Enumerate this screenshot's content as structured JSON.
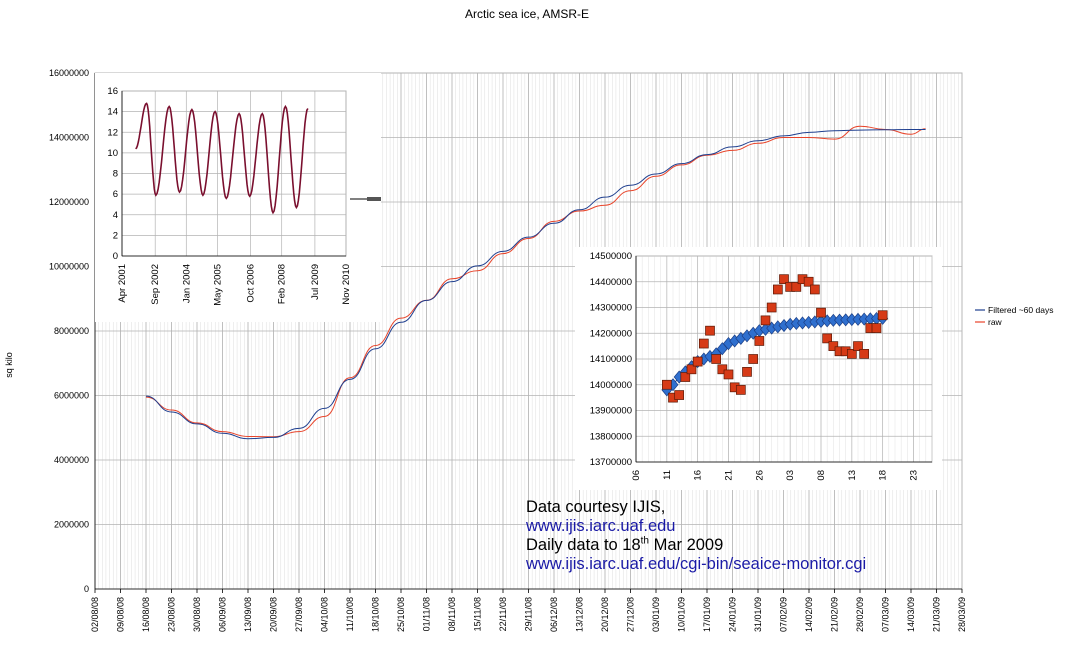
{
  "chart_data": [
    {
      "type": "line",
      "title": "Arctic sea ice, AMSR-E",
      "ylabel": "sq kilo",
      "ylim": [
        0,
        16000000
      ],
      "y_ticks": [
        "0",
        "2000000",
        "4000000",
        "6000000",
        "8000000",
        "10000000",
        "12000000",
        "14000000",
        "16000000"
      ],
      "x_ticks": [
        "02/08/08",
        "09/08/08",
        "16/08/08",
        "23/08/08",
        "30/08/08",
        "06/09/08",
        "13/09/08",
        "20/09/08",
        "27/09/08",
        "04/10/08",
        "11/10/08",
        "18/10/08",
        "25/10/08",
        "01/11/08",
        "08/11/08",
        "15/11/08",
        "22/11/08",
        "29/11/08",
        "06/12/08",
        "13/12/08",
        "20/12/08",
        "27/12/08",
        "03/01/09",
        "10/01/09",
        "17/01/09",
        "24/01/09",
        "31/01/09",
        "07/02/09",
        "14/02/09",
        "21/02/09",
        "28/02/09",
        "07/03/09",
        "14/03/09",
        "21/03/09",
        "28/03/09"
      ],
      "grid": "on",
      "legend": "right",
      "legend_entries": [
        "Filtered ~60 days",
        "raw"
      ],
      "series_colors": [
        "#1f3f8f",
        "#e8442a"
      ],
      "series": [
        {
          "name": "Filtered ~60 days",
          "points": [
            [
              "16/08/08",
              5980000
            ],
            [
              "23/08/08",
              5490000
            ],
            [
              "30/08/08",
              5120000
            ],
            [
              "06/09/08",
              4830000
            ],
            [
              "13/09/08",
              4660000
            ],
            [
              "20/09/08",
              4700000
            ],
            [
              "27/09/08",
              4980000
            ],
            [
              "04/10/08",
              5600000
            ],
            [
              "11/10/08",
              6500000
            ],
            [
              "18/10/08",
              7450000
            ],
            [
              "25/10/08",
              8270000
            ],
            [
              "01/11/08",
              8950000
            ],
            [
              "08/11/08",
              9530000
            ],
            [
              "15/11/08",
              10020000
            ],
            [
              "22/11/08",
              10470000
            ],
            [
              "29/11/08",
              10910000
            ],
            [
              "06/12/08",
              11340000
            ],
            [
              "13/12/08",
              11760000
            ],
            [
              "20/12/08",
              12150000
            ],
            [
              "27/12/08",
              12520000
            ],
            [
              "03/01/09",
              12870000
            ],
            [
              "10/01/09",
              13190000
            ],
            [
              "17/01/09",
              13470000
            ],
            [
              "24/01/09",
              13710000
            ],
            [
              "31/01/09",
              13900000
            ],
            [
              "07/02/09",
              14050000
            ],
            [
              "14/02/09",
              14160000
            ],
            [
              "21/02/09",
              14210000
            ],
            [
              "28/02/09",
              14230000
            ],
            [
              "07/03/09",
              14240000
            ],
            [
              "14/03/09",
              14250000
            ],
            [
              "18/03/09",
              14250000
            ]
          ]
        },
        {
          "name": "raw",
          "points": [
            [
              "16/08/08",
              5950000
            ],
            [
              "23/08/08",
              5550000
            ],
            [
              "30/08/08",
              5150000
            ],
            [
              "06/09/08",
              4880000
            ],
            [
              "13/09/08",
              4730000
            ],
            [
              "20/09/08",
              4720000
            ],
            [
              "27/09/08",
              4880000
            ],
            [
              "04/10/08",
              5350000
            ],
            [
              "11/10/08",
              6550000
            ],
            [
              "18/10/08",
              7550000
            ],
            [
              "25/10/08",
              8400000
            ],
            [
              "01/11/08",
              8950000
            ],
            [
              "08/11/08",
              9620000
            ],
            [
              "15/11/08",
              9870000
            ],
            [
              "22/11/08",
              10400000
            ],
            [
              "29/11/08",
              10870000
            ],
            [
              "06/12/08",
              11400000
            ],
            [
              "13/12/08",
              11720000
            ],
            [
              "20/12/08",
              11900000
            ],
            [
              "27/12/08",
              12350000
            ],
            [
              "03/01/09",
              12800000
            ],
            [
              "10/01/09",
              13150000
            ],
            [
              "17/01/09",
              13450000
            ],
            [
              "24/01/09",
              13600000
            ],
            [
              "31/01/09",
              13820000
            ],
            [
              "07/02/09",
              14000000
            ],
            [
              "14/02/09",
              14000000
            ],
            [
              "21/02/09",
              13950000
            ],
            [
              "28/02/09",
              14350000
            ],
            [
              "07/03/09",
              14250000
            ],
            [
              "14/03/09",
              14100000
            ],
            [
              "18/03/09",
              14270000
            ]
          ]
        }
      ]
    },
    {
      "type": "line",
      "ylim": [
        0,
        16
      ],
      "y_ticks": [
        "0",
        "2",
        "4",
        "6",
        "8",
        "10",
        "12",
        "14",
        "16"
      ],
      "x_ticks": [
        "Apr 2001",
        "Sep 2002",
        "Jan 2004",
        "May 2005",
        "Oct 2006",
        "Feb 2008",
        "Jul 2009",
        "Nov 2010"
      ],
      "x_range_years": [
        2001.25,
        2010.83
      ],
      "grid": "on",
      "series_colors": [
        "#7a0f2e"
      ],
      "series": [
        {
          "peaks": [
            [
              2002.3,
              14.8
            ],
            [
              2003.27,
              14.5
            ],
            [
              2004.24,
              14.2
            ],
            [
              2005.23,
              14.0
            ],
            [
              2006.26,
              13.8
            ],
            [
              2007.25,
              13.8
            ],
            [
              2008.24,
              14.5
            ],
            [
              2009.2,
              14.3
            ]
          ],
          "troughs": [
            [
              2002.7,
              5.9
            ],
            [
              2003.71,
              6.2
            ],
            [
              2004.71,
              5.9
            ],
            [
              2005.71,
              5.6
            ],
            [
              2006.71,
              5.8
            ],
            [
              2007.71,
              4.2
            ],
            [
              2008.71,
              4.7
            ]
          ]
        }
      ]
    },
    {
      "type": "scatter",
      "ylim": [
        13700000,
        14500000
      ],
      "y_ticks": [
        "13700000",
        "13800000",
        "13900000",
        "14000000",
        "14100000",
        "14200000",
        "14300000",
        "14400000",
        "14500000"
      ],
      "x_ticks": [
        "06",
        "11",
        "16",
        "21",
        "26",
        "03",
        "08",
        "13",
        "18",
        "23"
      ],
      "grid": "on",
      "series_colors": [
        "#d63a16",
        "#2f6fce"
      ],
      "series": [
        {
          "marker": "square",
          "values": [
            14000000,
            13950000,
            13960000,
            14030000,
            14060000,
            14090000,
            14160000,
            14210000,
            14100000,
            14060000,
            14040000,
            13990000,
            13980000,
            14050000,
            14100000,
            14170000,
            14250000,
            14300000,
            14370000,
            14410000,
            14380000,
            14380000,
            14410000,
            14400000,
            14370000,
            14280000,
            14180000,
            14150000,
            14130000,
            14130000,
            14120000,
            14150000,
            14120000,
            14220000,
            14220000,
            14270000
          ]
        },
        {
          "marker": "diamond",
          "values": [
            13980000,
            14000000,
            14030000,
            14050000,
            14070000,
            14090000,
            14100000,
            14110000,
            14120000,
            14140000,
            14160000,
            14170000,
            14180000,
            14190000,
            14200000,
            14210000,
            14215000,
            14220000,
            14225000,
            14230000,
            14235000,
            14238000,
            14240000,
            14242000,
            14244000,
            14246000,
            14248000,
            14250000,
            14251000,
            14252000,
            14253000,
            14254000,
            14255000,
            14256000,
            14257000,
            14258000
          ]
        }
      ]
    }
  ],
  "credit": {
    "line1": "Data courtesy IJIS,",
    "url1": "www.ijis.iarc.uaf.edu",
    "line3_a": "Daily data to 18",
    "line3_sup": "th",
    "line3_b": " Mar 2009",
    "url2": "www.ijis.iarc.uaf.edu/cgi-bin/seaice-monitor.cgi"
  }
}
